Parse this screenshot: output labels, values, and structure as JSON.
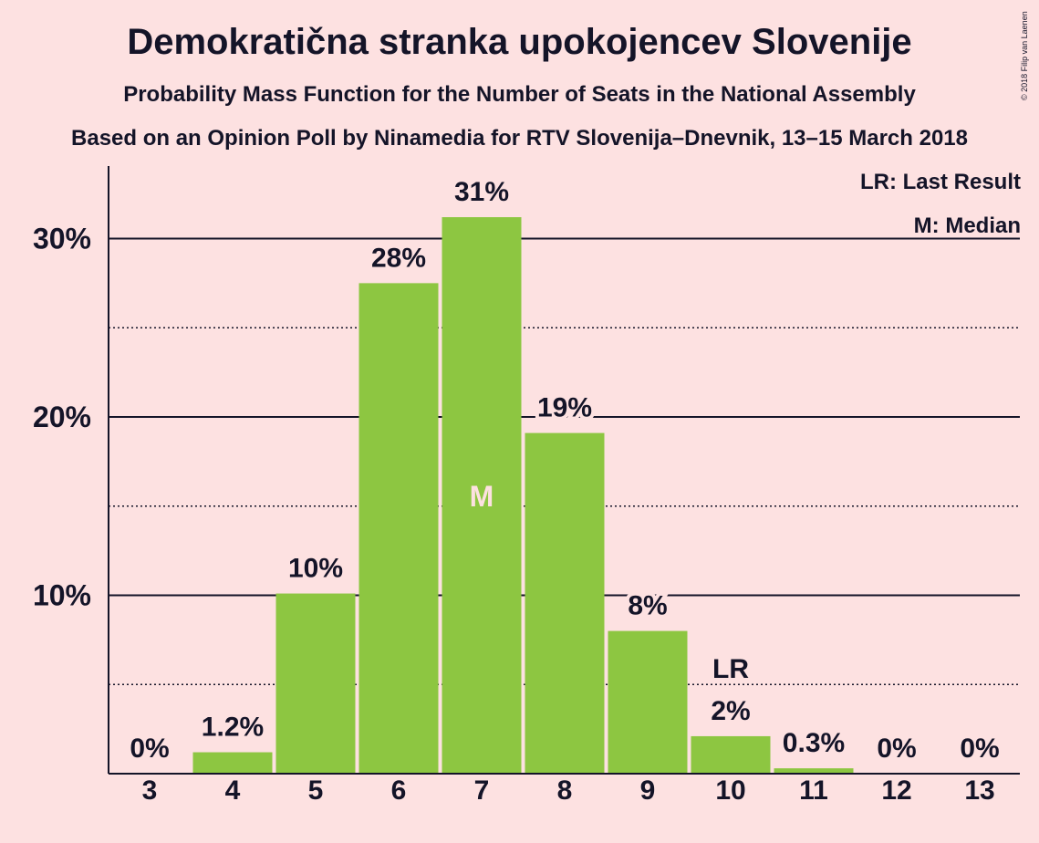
{
  "header": {
    "title": "Demokratična stranka upokojencev Slovenije",
    "subtitle": "Probability Mass Function for the Number of Seats in the National Assembly",
    "source": "Based on an Opinion Poll by Ninamedia for RTV Slovenija–Dnevnik, 13–15 March 2018",
    "copyright": "© 2018 Filip van Laenen"
  },
  "legend": {
    "lr": "LR: Last Result",
    "m": "M: Median"
  },
  "colors": {
    "bar": "#8dc641",
    "background": "#fde1e1",
    "text": "#141428"
  },
  "chart_data": {
    "type": "bar",
    "title": "Demokratična stranka upokojencev Slovenije",
    "categories": [
      "3",
      "4",
      "5",
      "6",
      "7",
      "8",
      "9",
      "10",
      "11",
      "12",
      "13"
    ],
    "values": [
      0,
      1.2,
      10.1,
      27.5,
      31.2,
      19.1,
      8.0,
      2.1,
      0.3,
      0,
      0
    ],
    "data_labels": [
      "0%",
      "1.2%",
      "10%",
      "28%",
      "31%",
      "19%",
      "8%",
      "2%",
      "0.3%",
      "0%",
      "0%"
    ],
    "ylim": [
      0,
      34
    ],
    "yticks": [
      10,
      20,
      30
    ],
    "ytick_labels": [
      "10%",
      "20%",
      "30%"
    ],
    "minor_gridlines": [
      5,
      15,
      25
    ],
    "median": {
      "category": "7",
      "label": "M"
    },
    "last_result": {
      "category": "10",
      "label": "LR"
    },
    "legend_position": "top-right"
  }
}
